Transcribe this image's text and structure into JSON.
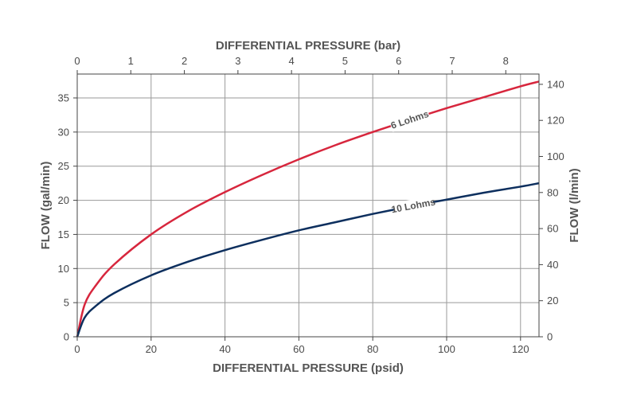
{
  "chart_data": {
    "type": "line",
    "x_bottom": {
      "label": "DIFFERENTIAL PRESSURE (psid)",
      "range": [
        0,
        125
      ],
      "ticks": [
        0,
        20,
        40,
        60,
        80,
        100,
        120
      ]
    },
    "x_top": {
      "label": "DIFFERENTIAL PRESSURE (bar)",
      "range": [
        0,
        8.62
      ],
      "ticks": [
        0,
        1,
        2,
        3,
        4,
        5,
        6,
        7,
        8
      ]
    },
    "y_left": {
      "label": "FLOW (gal/min)",
      "range": [
        0,
        38.5
      ],
      "ticks": [
        0,
        5,
        10,
        15,
        20,
        25,
        30,
        35
      ]
    },
    "y_right": {
      "label": "FLOW (l/min)",
      "range": [
        0,
        145.7
      ],
      "ticks": [
        0,
        20,
        40,
        60,
        80,
        100,
        120,
        140
      ]
    },
    "grid": true,
    "series": [
      {
        "name": "6 Lohms",
        "color": "#d7263d",
        "x": [
          0,
          2,
          5,
          10,
          20,
          30,
          40,
          50,
          60,
          70,
          80,
          90,
          100,
          110,
          120,
          125
        ],
        "y": [
          0,
          4.7,
          7.5,
          10.6,
          15.0,
          18.4,
          21.2,
          23.7,
          26.0,
          28.1,
          30.0,
          31.8,
          33.5,
          35.1,
          36.7,
          37.4
        ]
      },
      {
        "name": "10 Lohms",
        "color": "#0d2f5e",
        "x": [
          0,
          2,
          5,
          10,
          20,
          30,
          40,
          50,
          60,
          70,
          80,
          90,
          100,
          110,
          120,
          125
        ],
        "y": [
          0,
          2.8,
          4.5,
          6.4,
          9.0,
          11.0,
          12.7,
          14.2,
          15.6,
          16.8,
          18.0,
          19.1,
          20.1,
          21.1,
          22.0,
          22.5
        ]
      }
    ]
  }
}
